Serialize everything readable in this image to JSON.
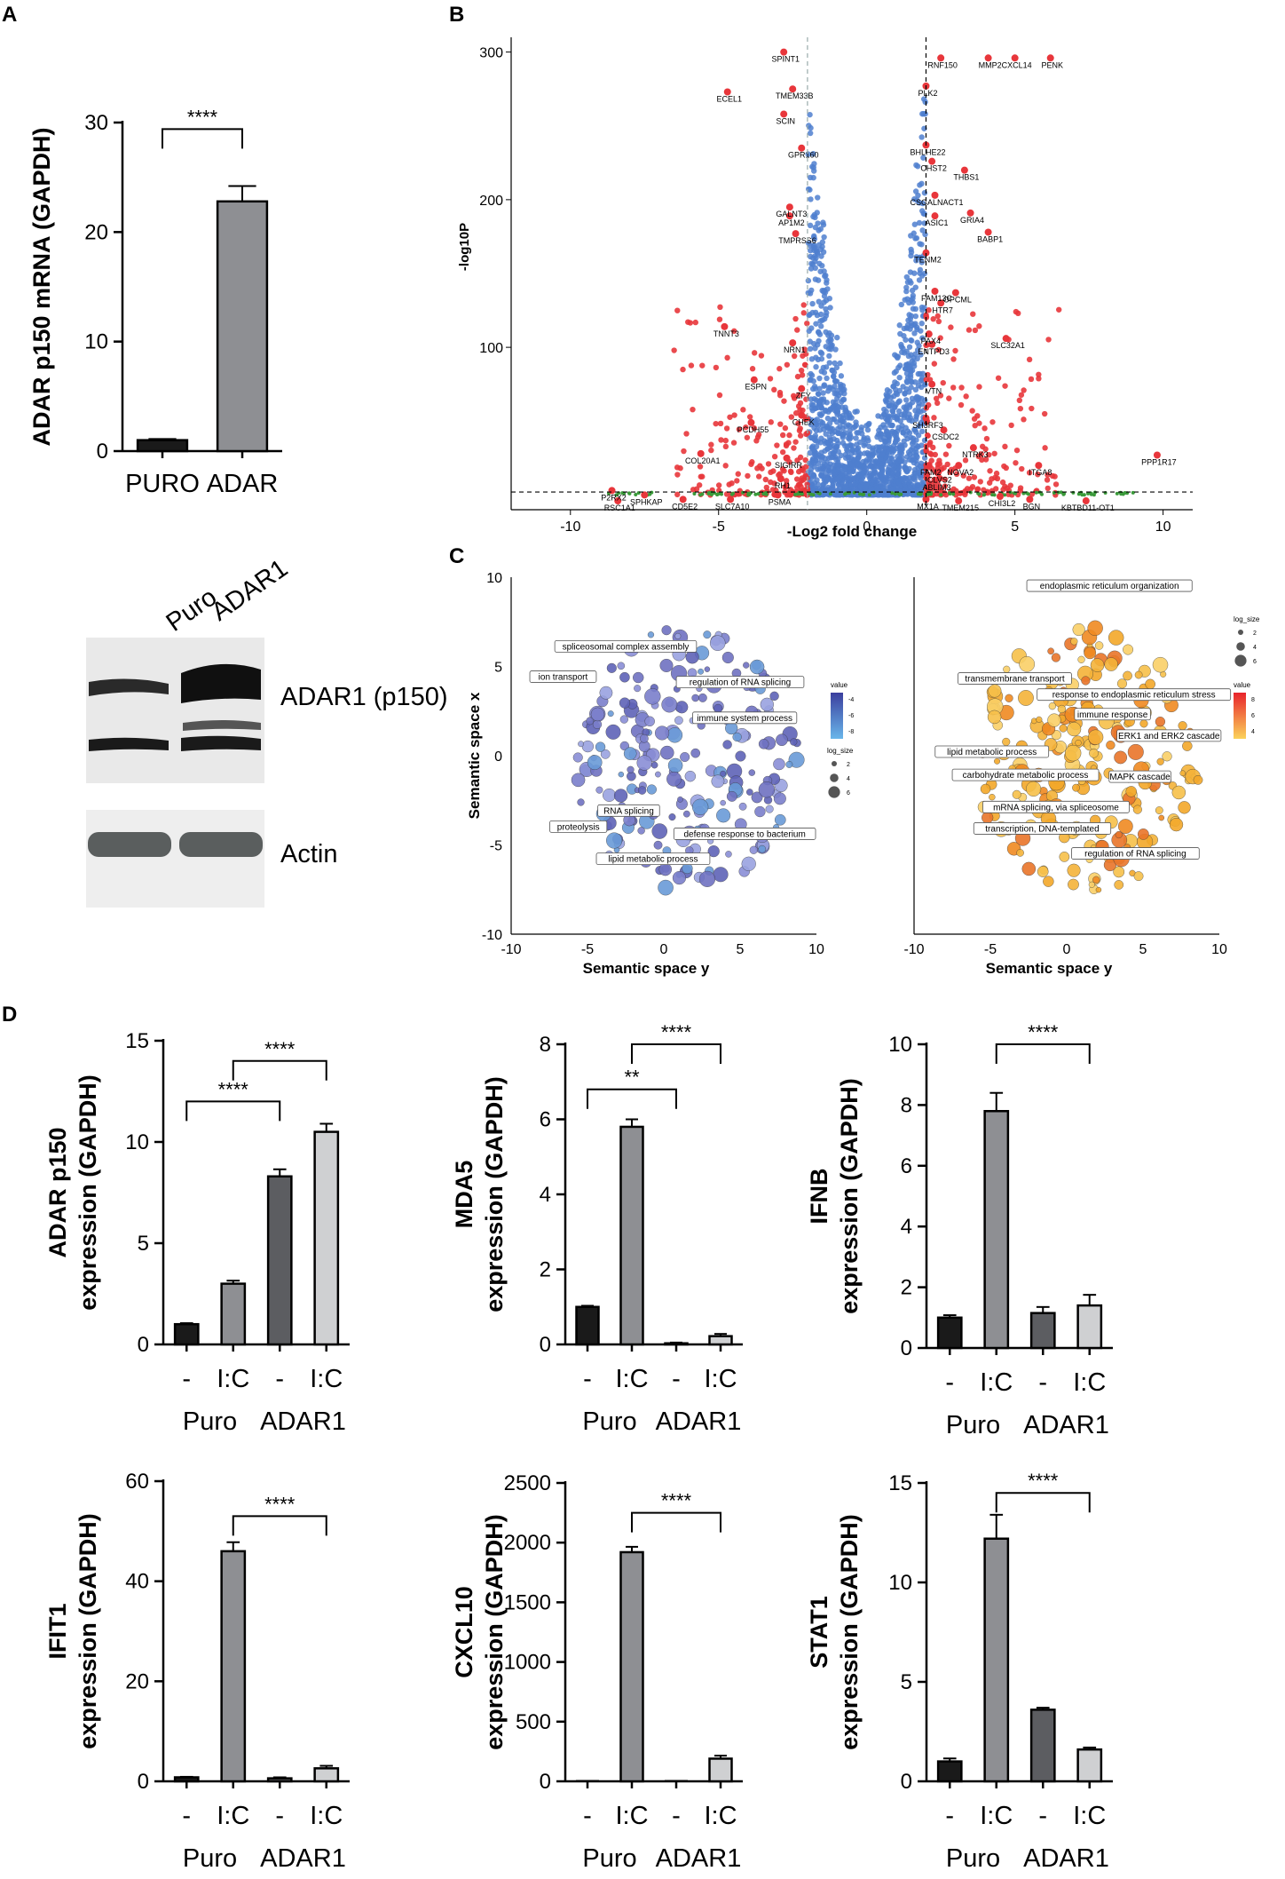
{
  "panel_letters": [
    "A",
    "B",
    "C",
    "D"
  ],
  "chart_data": [
    {
      "id": "A",
      "type": "bar",
      "ylabel": "ADAR p150 mRNA (GAPDH)",
      "categories": [
        "PURO",
        "ADAR"
      ],
      "values": [
        1.0,
        22.8
      ],
      "errors": [
        0.1,
        1.4
      ],
      "colors": [
        "#1a1a1a",
        "#8e8f93"
      ],
      "ylim": [
        0,
        30
      ],
      "yticks": [
        0,
        10,
        20,
        30
      ],
      "significance": [
        {
          "from": 0,
          "to": 1,
          "label": "****"
        }
      ]
    },
    {
      "id": "B",
      "type": "scatter",
      "xlabel": "-Log2  fold change",
      "ylabel": "-log10P",
      "xlim": [
        -12,
        11
      ],
      "ylim": [
        -10,
        310
      ],
      "xticks": [
        -10,
        -5,
        0,
        5,
        10
      ],
      "yticks": [
        100,
        200,
        300
      ],
      "fc_thresholds": [
        -2,
        2
      ],
      "p_threshold": 2,
      "genes": [
        {
          "x": -2.8,
          "y": 300,
          "label": "SPINT1"
        },
        {
          "x": -4.7,
          "y": 273,
          "label": "ECEL1"
        },
        {
          "x": -2.5,
          "y": 275,
          "label": "TMEM33B"
        },
        {
          "x": -2.8,
          "y": 258,
          "label": "SCIN"
        },
        {
          "x": -2.2,
          "y": 235,
          "label": "GPR160"
        },
        {
          "x": -2.6,
          "y": 195,
          "label": "GALNT3"
        },
        {
          "x": -2.6,
          "y": 189,
          "label": "AP1M2"
        },
        {
          "x": -2.4,
          "y": 177,
          "label": "TMPRSS6"
        },
        {
          "x": -4.8,
          "y": 114,
          "label": "TNNT3"
        },
        {
          "x": -2.5,
          "y": 103,
          "label": "NRN1"
        },
        {
          "x": -3.8,
          "y": 78,
          "label": "ESPN"
        },
        {
          "x": -2.2,
          "y": 72,
          "label": "ZFY"
        },
        {
          "x": -2.2,
          "y": 54,
          "label": "CHEK"
        },
        {
          "x": -3.9,
          "y": 49,
          "label": "PCDH55"
        },
        {
          "x": -5.6,
          "y": 28,
          "label": "COL20A1"
        },
        {
          "x": -2.7,
          "y": 25,
          "label": "SIGIRR"
        },
        {
          "x": -2.9,
          "y": 11,
          "label": "RH1"
        },
        {
          "x": -8.6,
          "y": 3,
          "label": "P2RX2"
        },
        {
          "x": -7.5,
          "y": 0,
          "label": "SPHKAP"
        },
        {
          "x": -8.4,
          "y": -4,
          "label": "RSC1A1"
        },
        {
          "x": -6.2,
          "y": -3,
          "label": "CD5E2"
        },
        {
          "x": -4.6,
          "y": -3,
          "label": "SLC7A10"
        },
        {
          "x": -3.0,
          "y": 0,
          "label": "PSMA"
        },
        {
          "x": 2.5,
          "y": 296,
          "label": "RNF150"
        },
        {
          "x": 4.1,
          "y": 296,
          "label": "MMP2"
        },
        {
          "x": 5.0,
          "y": 296,
          "label": "CXCL14"
        },
        {
          "x": 6.2,
          "y": 296,
          "label": "PENK"
        },
        {
          "x": 2.0,
          "y": 277,
          "label": "PLK2"
        },
        {
          "x": 2.0,
          "y": 237,
          "label": "BHLHE22"
        },
        {
          "x": 2.2,
          "y": 226,
          "label": "CHST2"
        },
        {
          "x": 3.3,
          "y": 220,
          "label": "THBS1"
        },
        {
          "x": 2.3,
          "y": 203,
          "label": "CSGALNACT1"
        },
        {
          "x": 2.3,
          "y": 189,
          "label": "ASIC1"
        },
        {
          "x": 3.5,
          "y": 191,
          "label": "GRIA4"
        },
        {
          "x": 4.1,
          "y": 178,
          "label": "BABP1"
        },
        {
          "x": 2.0,
          "y": 164,
          "label": "TENM2"
        },
        {
          "x": 2.3,
          "y": 138,
          "label": "FAM13C"
        },
        {
          "x": 3.0,
          "y": 137,
          "label": "OPCML"
        },
        {
          "x": 2.5,
          "y": 130,
          "label": "HTR7"
        },
        {
          "x": 2.1,
          "y": 109,
          "label": "PAX4"
        },
        {
          "x": 2.2,
          "y": 102,
          "label": "ENTPD3"
        },
        {
          "x": 4.7,
          "y": 106,
          "label": "SLC32A1"
        },
        {
          "x": 2.2,
          "y": 75,
          "label": "VTN"
        },
        {
          "x": 2.0,
          "y": 52,
          "label": "SH3RF3"
        },
        {
          "x": 2.6,
          "y": 44,
          "label": "CSDC2"
        },
        {
          "x": 3.6,
          "y": 32,
          "label": "NTRK3"
        },
        {
          "x": 2.1,
          "y": 20,
          "label": "FAM2"
        },
        {
          "x": 3.1,
          "y": 20,
          "label": "NOVA2"
        },
        {
          "x": 2.4,
          "y": 15,
          "label": "CLVS2"
        },
        {
          "x": 2.3,
          "y": 10,
          "label": "ABLIM3"
        },
        {
          "x": 5.8,
          "y": 20,
          "label": "ITGA8"
        },
        {
          "x": 9.8,
          "y": 27,
          "label": "PPP1R17"
        },
        {
          "x": 2.0,
          "y": -3,
          "label": "MX1A"
        },
        {
          "x": 3.1,
          "y": -4,
          "label": "TMEM215"
        },
        {
          "x": 4.5,
          "y": -1,
          "label": "CHI3L2"
        },
        {
          "x": 5.5,
          "y": -3,
          "label": "BGN"
        },
        {
          "x": 7.4,
          "y": -4,
          "label": "KBTBD11-OT1"
        }
      ]
    },
    {
      "id": "C-left",
      "type": "scatter",
      "xlabel": "Semantic space y",
      "ylabel": "Semantic space x",
      "xlim": [
        -10,
        10
      ],
      "ylim": [
        -10,
        10
      ],
      "xticks": [
        -10,
        -5,
        0,
        5,
        10
      ],
      "yticks": [
        -10,
        -5,
        0,
        5,
        10
      ],
      "legend_value_title": "value",
      "legend_value_ticks": [
        "-4",
        "-6",
        "-8"
      ],
      "legend_size_title": "log_size",
      "legend_size_ticks": [
        "2",
        "4",
        "6"
      ],
      "terms": [
        {
          "x": -2.5,
          "y": 6.0,
          "label": "spliceosomal complex assembly"
        },
        {
          "x": -6.6,
          "y": 4.3,
          "label": "ion transport"
        },
        {
          "x": 5.0,
          "y": 4.0,
          "label": "regulation of RNA splicing"
        },
        {
          "x": 5.3,
          "y": 2.0,
          "label": "immune system process"
        },
        {
          "x": -2.3,
          "y": -3.2,
          "label": "RNA splicing"
        },
        {
          "x": -5.6,
          "y": -4.1,
          "label": "proteolysis"
        },
        {
          "x": 5.3,
          "y": -4.5,
          "label": "defense response to bacterium"
        },
        {
          "x": -0.7,
          "y": -5.9,
          "label": "lipid metabolic process"
        }
      ]
    },
    {
      "id": "C-right",
      "type": "scatter",
      "xlabel": "Semantic space y",
      "ylabel": "",
      "xlim": [
        -10,
        10
      ],
      "ylim": [
        -10,
        10
      ],
      "xticks": [
        -10,
        -5,
        0,
        5,
        10
      ],
      "legend_value_title": "value",
      "legend_value_ticks": [
        "8",
        "6",
        "4"
      ],
      "legend_size_title": "log_size",
      "legend_size_ticks": [
        "2",
        "4",
        "6"
      ],
      "terms": [
        {
          "x": 2.8,
          "y": 9.4,
          "label": "endoplasmic reticulum organization"
        },
        {
          "x": -3.4,
          "y": 4.2,
          "label": "transmembrane transport"
        },
        {
          "x": 4.4,
          "y": 3.3,
          "label": "response to endoplasmic reticulum stress"
        },
        {
          "x": 3.0,
          "y": 2.2,
          "label": "immune response"
        },
        {
          "x": 6.7,
          "y": 1.0,
          "label": "ERK1 and ERK2 cascade"
        },
        {
          "x": -4.9,
          "y": 0.1,
          "label": "lipid metabolic process"
        },
        {
          "x": -2.7,
          "y": -1.2,
          "label": "carbohydrate metabolic process"
        },
        {
          "x": -0.7,
          "y": -3.0,
          "label": "mRNA splicing, via spliceosome"
        },
        {
          "x": 4.8,
          "y": -1.3,
          "label": "MAPK cascade"
        },
        {
          "x": -1.6,
          "y": -4.2,
          "label": "transcription, DNA-templated"
        },
        {
          "x": 4.5,
          "y": -5.6,
          "label": "regulation of RNA splicing"
        }
      ]
    },
    {
      "id": "D1",
      "type": "bar",
      "ylabel_top": "ADAR p150",
      "ylabel": "expression (GAPDH)",
      "categories": [
        "-",
        "I:C",
        "-",
        "I:C"
      ],
      "groups": [
        "Puro",
        "ADAR1"
      ],
      "values": [
        1.0,
        3.0,
        8.3,
        10.5
      ],
      "errors": [
        0.05,
        0.15,
        0.35,
        0.4
      ],
      "ylim": [
        0,
        15
      ],
      "yticks": [
        0,
        5,
        10,
        15
      ],
      "significance": [
        {
          "from": 0,
          "to": 2,
          "level": 12.0,
          "label": "****"
        },
        {
          "from": 1,
          "to": 3,
          "level": 14.0,
          "label": "****"
        }
      ]
    },
    {
      "id": "D2",
      "type": "bar",
      "ylabel_top": "MDA5",
      "ylabel": "expression (GAPDH)",
      "categories": [
        "-",
        "I:C",
        "-",
        "I:C"
      ],
      "groups": [
        "Puro",
        "ADAR1"
      ],
      "values": [
        1.0,
        5.8,
        0.03,
        0.22
      ],
      "errors": [
        0.03,
        0.2,
        0.02,
        0.06
      ],
      "ylim": [
        0,
        8
      ],
      "yticks": [
        0,
        2,
        4,
        6,
        8
      ],
      "significance": [
        {
          "from": 0,
          "to": 2,
          "level": 6.8,
          "label": "**"
        },
        {
          "from": 1,
          "to": 3,
          "level": 8.0,
          "label": "****"
        }
      ]
    },
    {
      "id": "D3",
      "type": "bar",
      "ylabel_top": "IFNB",
      "ylabel": "expression (GAPDH)",
      "categories": [
        "-",
        "I:C",
        "-",
        "I:C"
      ],
      "groups": [
        "Puro",
        "ADAR1"
      ],
      "values": [
        1.0,
        7.8,
        1.15,
        1.4
      ],
      "errors": [
        0.08,
        0.6,
        0.2,
        0.35
      ],
      "ylim": [
        0,
        10
      ],
      "yticks": [
        0,
        2,
        4,
        6,
        8,
        10
      ],
      "significance": [
        {
          "from": 1,
          "to": 3,
          "level": 10.0,
          "label": "****"
        }
      ]
    },
    {
      "id": "D4",
      "type": "bar",
      "ylabel_top": "IFIT1",
      "ylabel": "expression (GAPDH)",
      "categories": [
        "-",
        "I:C",
        "-",
        "I:C"
      ],
      "groups": [
        "Puro",
        "ADAR1"
      ],
      "values": [
        0.8,
        46.0,
        0.6,
        2.6
      ],
      "errors": [
        0.1,
        1.8,
        0.2,
        0.5
      ],
      "ylim": [
        0,
        60
      ],
      "yticks": [
        0,
        20,
        40,
        60
      ],
      "significance": [
        {
          "from": 1,
          "to": 3,
          "level": 53,
          "label": "****"
        }
      ]
    },
    {
      "id": "D5",
      "type": "bar",
      "ylabel_top": "CXCL10",
      "ylabel": "expression (GAPDH)",
      "categories": [
        "-",
        "I:C",
        "-",
        "I:C"
      ],
      "groups": [
        "Puro",
        "ADAR1"
      ],
      "values": [
        0,
        1920,
        0,
        190
      ],
      "errors": [
        0,
        45,
        0,
        25
      ],
      "ylim": [
        0,
        2500
      ],
      "yticks": [
        0,
        500,
        1000,
        1500,
        2000,
        2500
      ],
      "significance": [
        {
          "from": 1,
          "to": 3,
          "level": 2250,
          "label": "****"
        }
      ]
    },
    {
      "id": "D6",
      "type": "bar",
      "ylabel_top": "STAT1",
      "ylabel": "expression (GAPDH)",
      "categories": [
        "-",
        "I:C",
        "-",
        "I:C"
      ],
      "groups": [
        "Puro",
        "ADAR1"
      ],
      "values": [
        1.0,
        12.2,
        3.6,
        1.6
      ],
      "errors": [
        0.15,
        1.2,
        0.1,
        0.1
      ],
      "ylim": [
        0,
        15
      ],
      "yticks": [
        0,
        5,
        10,
        15
      ],
      "significance": [
        {
          "from": 1,
          "to": 3,
          "level": 14.5,
          "label": "****"
        }
      ]
    }
  ],
  "western_blot": {
    "lanes": [
      "Puro",
      "ADAR1"
    ],
    "rows": [
      {
        "label": "ADAR1 (p150)"
      },
      {
        "label": "Actin"
      }
    ]
  },
  "colors": {
    "bar_dark": "#1a1a1a",
    "bar_mid": "#8e8f93",
    "bar_darkgray": "#5c5d61",
    "bar_light": "#cfd0d2",
    "volcano_sig": "#e8363b",
    "volcano_ns": "#4f7fcf",
    "volcano_low": "#3a9a3a",
    "go_blue": "#6f72c2",
    "go_orange": "#f3a82a"
  }
}
